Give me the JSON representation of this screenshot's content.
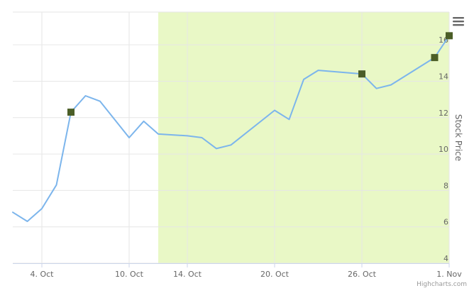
{
  "chart_data": {
    "type": "line",
    "title": "",
    "xlabel": "",
    "ylabel": "Stock Price",
    "ylim": [
      4,
      17.8
    ],
    "y_axis_side": "right",
    "y_ticks": [
      4,
      6,
      8,
      10,
      12,
      14,
      16
    ],
    "x_ticks": [
      {
        "x": "2016-10-04",
        "label": "4. Oct"
      },
      {
        "x": "2016-10-10",
        "label": "10. Oct"
      },
      {
        "x": "2016-10-14",
        "label": "14. Oct"
      },
      {
        "x": "2016-10-20",
        "label": "20. Oct"
      },
      {
        "x": "2016-10-26",
        "label": "26. Oct"
      },
      {
        "x": "2016-11-01",
        "label": "1. Nov"
      }
    ],
    "x_range": [
      "2016-10-02",
      "2016-11-01"
    ],
    "grid": true,
    "legend": "none",
    "plot_band": {
      "from": "2016-10-12",
      "to": "2016-11-01",
      "color": "#e9f8c6"
    },
    "series": [
      {
        "type": "line",
        "color": "#7cb5ec",
        "points": [
          {
            "x": "2016-10-02",
            "y": 6.8
          },
          {
            "x": "2016-10-03",
            "y": 6.3
          },
          {
            "x": "2016-10-04",
            "y": 7.0
          },
          {
            "x": "2016-10-05",
            "y": 8.3
          },
          {
            "x": "2016-10-06",
            "y": 12.3
          },
          {
            "x": "2016-10-07",
            "y": 13.2
          },
          {
            "x": "2016-10-08",
            "y": 12.9
          },
          {
            "x": "2016-10-10",
            "y": 10.9
          },
          {
            "x": "2016-10-11",
            "y": 11.8
          },
          {
            "x": "2016-10-12",
            "y": 11.1
          },
          {
            "x": "2016-10-14",
            "y": 11.0
          },
          {
            "x": "2016-10-15",
            "y": 10.9
          },
          {
            "x": "2016-10-16",
            "y": 10.3
          },
          {
            "x": "2016-10-17",
            "y": 10.5
          },
          {
            "x": "2016-10-20",
            "y": 12.4
          },
          {
            "x": "2016-10-21",
            "y": 11.9
          },
          {
            "x": "2016-10-22",
            "y": 14.1
          },
          {
            "x": "2016-10-23",
            "y": 14.6
          },
          {
            "x": "2016-10-26",
            "y": 14.4
          },
          {
            "x": "2016-10-27",
            "y": 13.6
          },
          {
            "x": "2016-10-28",
            "y": 13.8
          },
          {
            "x": "2016-10-31",
            "y": 15.3
          },
          {
            "x": "2016-11-01",
            "y": 16.5
          }
        ]
      },
      {
        "type": "scatter",
        "marker": "square",
        "color": "#4b5e27",
        "points": [
          {
            "x": "2016-10-06",
            "y": 12.3
          },
          {
            "x": "2016-10-26",
            "y": 14.4
          },
          {
            "x": "2016-10-31",
            "y": 15.3
          },
          {
            "x": "2016-11-01",
            "y": 16.5
          }
        ]
      }
    ]
  },
  "colors": {
    "grid": "#e6e6e6",
    "axis_line": "#ccd6eb",
    "text": "#666666",
    "credits": "#999999",
    "menu_icon": "#666666"
  },
  "menu": {
    "icon": "hamburger-icon"
  },
  "credits": {
    "text": "Highcharts.com"
  }
}
